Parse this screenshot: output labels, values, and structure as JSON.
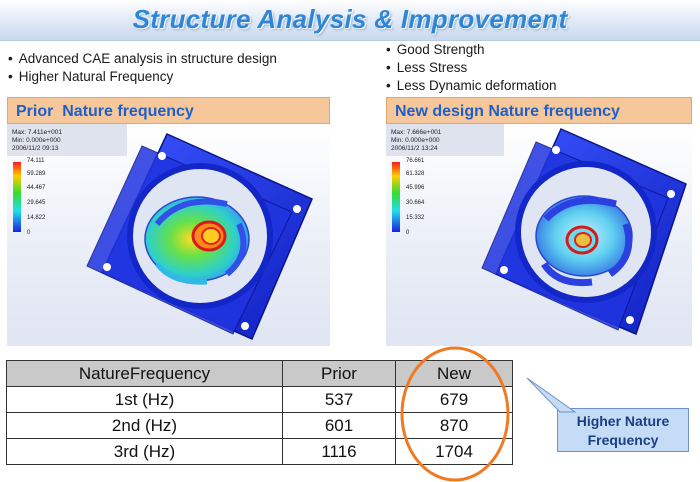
{
  "title": "Structure Analysis & Improvement",
  "left_bullets": [
    "Advanced CAE analysis in structure design",
    "Higher Natural Frequency"
  ],
  "right_bullets": [
    "Good Strength",
    "Less Stress",
    "Less Dynamic deformation"
  ],
  "prior_panel": {
    "label": "Prior  Nature frequency",
    "info": [
      "Max: 7.411e+001",
      "Min: 0.000e+000",
      "2006/11/2 09:13"
    ],
    "legend": [
      "74.111",
      "59.289",
      "44.467",
      "29.645",
      "14.822",
      "0"
    ]
  },
  "new_panel": {
    "label": "New design Nature frequency",
    "info": [
      "Max: 7.666e+001",
      "Min: 0.000e+000",
      "2006/11/2 13:24"
    ],
    "legend": [
      "76.661",
      "61.328",
      "45.996",
      "30.664",
      "15.332",
      "0"
    ]
  },
  "table": {
    "headers": [
      "NatureFrequency",
      "Prior",
      "New"
    ],
    "rows": [
      [
        "1st (Hz)",
        "537",
        "679"
      ],
      [
        "2nd (Hz)",
        "601",
        "870"
      ],
      [
        "3rd (Hz)",
        "1116",
        "1704"
      ]
    ]
  },
  "callout": [
    "Higher Nature",
    "Frequency"
  ],
  "colors": {
    "title": "#2f86d6",
    "label_bg": "#f5c79a",
    "label_text": "#1f60c8",
    "highlight": "#f07a22",
    "callout_bg": "#c5dcf6"
  }
}
